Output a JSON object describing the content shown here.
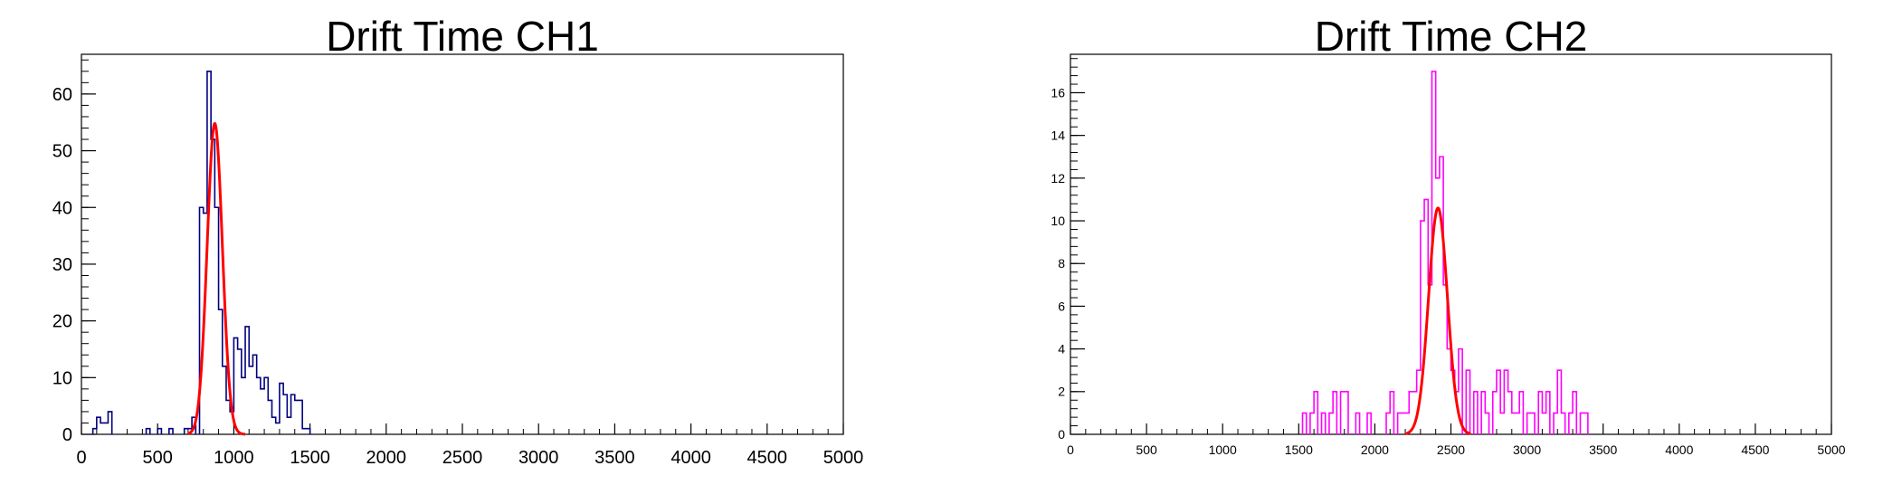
{
  "chart_data": [
    {
      "type": "histogram",
      "title": "Drift Time CH1",
      "xlim": [
        0,
        5000
      ],
      "ylim": [
        0,
        67
      ],
      "x_ticks": [
        0,
        500,
        1000,
        1500,
        2000,
        2500,
        3000,
        3500,
        4000,
        4500,
        5000
      ],
      "y_ticks": [
        0,
        10,
        20,
        30,
        40,
        50,
        60
      ],
      "bin_width": 25,
      "line_color": "#000080",
      "bins": [
        [
          75,
          1
        ],
        [
          100,
          3
        ],
        [
          125,
          2
        ],
        [
          150,
          2
        ],
        [
          175,
          4
        ],
        [
          425,
          1
        ],
        [
          500,
          1
        ],
        [
          575,
          1
        ],
        [
          675,
          1
        ],
        [
          700,
          1
        ],
        [
          725,
          3
        ],
        [
          775,
          40
        ],
        [
          800,
          39
        ],
        [
          825,
          64
        ],
        [
          850,
          52
        ],
        [
          875,
          40
        ],
        [
          900,
          22
        ],
        [
          925,
          12
        ],
        [
          950,
          6
        ],
        [
          975,
          4
        ],
        [
          1000,
          17
        ],
        [
          1025,
          15
        ],
        [
          1050,
          10
        ],
        [
          1075,
          19
        ],
        [
          1100,
          12
        ],
        [
          1125,
          14
        ],
        [
          1150,
          10
        ],
        [
          1175,
          8
        ],
        [
          1200,
          10
        ],
        [
          1225,
          6
        ],
        [
          1250,
          3
        ],
        [
          1275,
          2
        ],
        [
          1300,
          9
        ],
        [
          1325,
          7
        ],
        [
          1350,
          3
        ],
        [
          1375,
          7
        ],
        [
          1400,
          6
        ],
        [
          1425,
          6
        ],
        [
          1450,
          1
        ],
        [
          1475,
          1
        ]
      ],
      "fit": {
        "function": "gaus",
        "color": "#ff0000",
        "constant": 54.8,
        "mean": 875,
        "sigma": 50,
        "range": [
          700,
          1075
        ]
      }
    },
    {
      "type": "histogram",
      "title": "Drift Time CH2",
      "xlim": [
        0,
        5000
      ],
      "ylim": [
        0,
        17.8
      ],
      "x_ticks": [
        0,
        500,
        1000,
        1500,
        2000,
        2500,
        3000,
        3500,
        4000,
        4500,
        5000
      ],
      "y_ticks": [
        0,
        2,
        4,
        6,
        8,
        10,
        12,
        14,
        16
      ],
      "bin_width": 25,
      "line_color": "#ff00ff",
      "bins": [
        [
          1525,
          1
        ],
        [
          1575,
          1
        ],
        [
          1600,
          2
        ],
        [
          1650,
          1
        ],
        [
          1700,
          1
        ],
        [
          1725,
          2
        ],
        [
          1775,
          2
        ],
        [
          1800,
          2
        ],
        [
          1875,
          1
        ],
        [
          1950,
          1
        ],
        [
          2075,
          1
        ],
        [
          2100,
          2
        ],
        [
          2150,
          1
        ],
        [
          2175,
          1
        ],
        [
          2200,
          1
        ],
        [
          2225,
          2
        ],
        [
          2250,
          2
        ],
        [
          2275,
          3
        ],
        [
          2300,
          10
        ],
        [
          2325,
          11
        ],
        [
          2350,
          7
        ],
        [
          2375,
          17
        ],
        [
          2400,
          12
        ],
        [
          2425,
          13
        ],
        [
          2450,
          7
        ],
        [
          2475,
          4
        ],
        [
          2500,
          3
        ],
        [
          2525,
          2
        ],
        [
          2550,
          4
        ],
        [
          2600,
          3
        ],
        [
          2650,
          2
        ],
        [
          2700,
          2
        ],
        [
          2725,
          1
        ],
        [
          2775,
          2
        ],
        [
          2800,
          3
        ],
        [
          2825,
          1
        ],
        [
          2850,
          3
        ],
        [
          2875,
          2
        ],
        [
          2900,
          1
        ],
        [
          2925,
          1
        ],
        [
          2950,
          2
        ],
        [
          3000,
          1
        ],
        [
          3025,
          1
        ],
        [
          3075,
          2
        ],
        [
          3100,
          1
        ],
        [
          3125,
          2
        ],
        [
          3175,
          1
        ],
        [
          3200,
          3
        ],
        [
          3225,
          1
        ],
        [
          3275,
          1
        ],
        [
          3300,
          2
        ],
        [
          3350,
          1
        ],
        [
          3375,
          1
        ]
      ],
      "fit": {
        "function": "gaus",
        "color": "#ff0000",
        "constant": 10.6,
        "mean": 2415,
        "sigma": 62,
        "range": [
          2200,
          2630
        ]
      }
    }
  ]
}
